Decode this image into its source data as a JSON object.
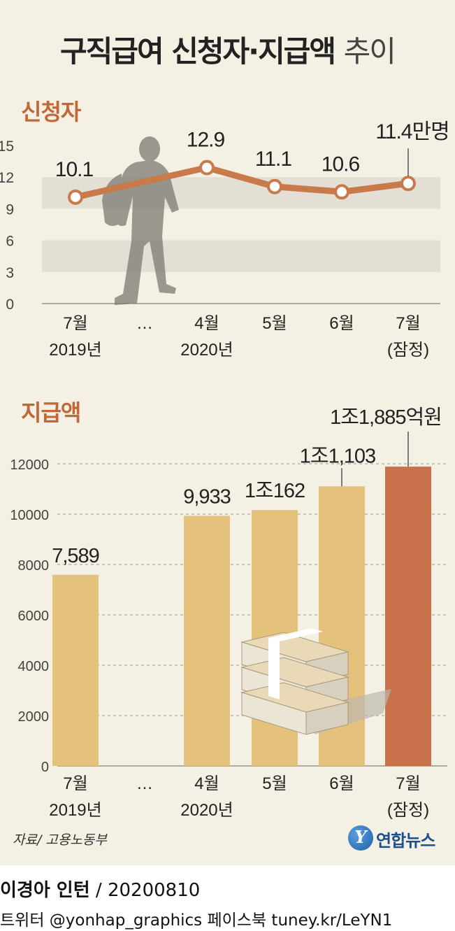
{
  "title_bold": "구직급여 신청자·지급액",
  "title_light": "추이",
  "source": "자료/ 고용노동부",
  "logo_text": "연합뉴스",
  "credit_author": "이경아 인턴",
  "credit_date": "/ 20200810",
  "social": "트위터 @yonhap_graphics  페이스북 tuney.kr/LeYN1",
  "colors": {
    "line": "#c97a4a",
    "bar": "#e5c27c",
    "bar_highlight": "#c8714a",
    "section_title": "#c0683a"
  },
  "chart_data": [
    {
      "type": "line",
      "title": "신청자",
      "yticks": [
        0,
        3,
        6,
        9,
        12,
        15
      ],
      "ylim": [
        0,
        15
      ],
      "grid": "alternating bands",
      "categories": [
        "7월\n2019년",
        "…",
        "4월\n2020년",
        "5월",
        "6월",
        "7월\n(잠정)"
      ],
      "points": [
        {
          "slot": 0,
          "value": 10.1,
          "label": "10.1"
        },
        {
          "slot": 2,
          "value": 12.9,
          "label": "12.9"
        },
        {
          "slot": 3,
          "value": 11.1,
          "label": "11.1"
        },
        {
          "slot": 4,
          "value": 10.6,
          "label": "10.6"
        },
        {
          "slot": 5,
          "value": 11.4,
          "label": "11.4만명"
        }
      ]
    },
    {
      "type": "bar",
      "title": "지급액",
      "yticks": [
        0,
        2000,
        4000,
        6000,
        8000,
        10000,
        12000
      ],
      "ylim": [
        0,
        12000
      ],
      "grid": "dashed horizontal",
      "categories": [
        "7월\n2019년",
        "…",
        "4월\n2020년",
        "5월",
        "6월",
        "7월\n(잠정)"
      ],
      "bars": [
        {
          "slot": 0,
          "value": 7589,
          "label": "7,589"
        },
        {
          "slot": 2,
          "value": 9933,
          "label": "9,933"
        },
        {
          "slot": 3,
          "value": 10162,
          "label": "1조162"
        },
        {
          "slot": 4,
          "value": 11103,
          "label": "1조1,103"
        },
        {
          "slot": 5,
          "value": 11885,
          "label": "1조1,885억원",
          "highlight": true
        }
      ]
    }
  ]
}
